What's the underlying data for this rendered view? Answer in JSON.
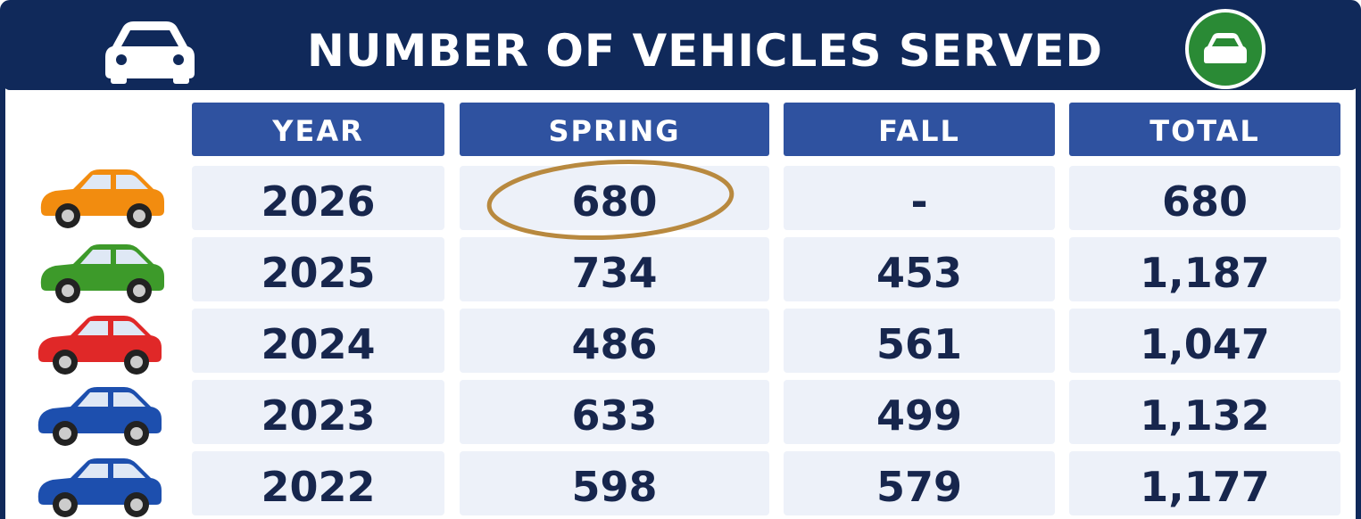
{
  "header": {
    "title": "NUMBER OF VEHICLES SERVED"
  },
  "table": {
    "columns": [
      "YEAR",
      "SPRING",
      "FALL",
      "TOTAL"
    ],
    "rows": [
      [
        "2026",
        "680",
        "-",
        "680"
      ],
      [
        "2025",
        "734",
        "453",
        "1,187"
      ],
      [
        "2024",
        "486",
        "561",
        "1,047"
      ],
      [
        "2023",
        "633",
        "499",
        "1,132"
      ],
      [
        "2022",
        "598",
        "579",
        "1,177"
      ]
    ]
  }
}
